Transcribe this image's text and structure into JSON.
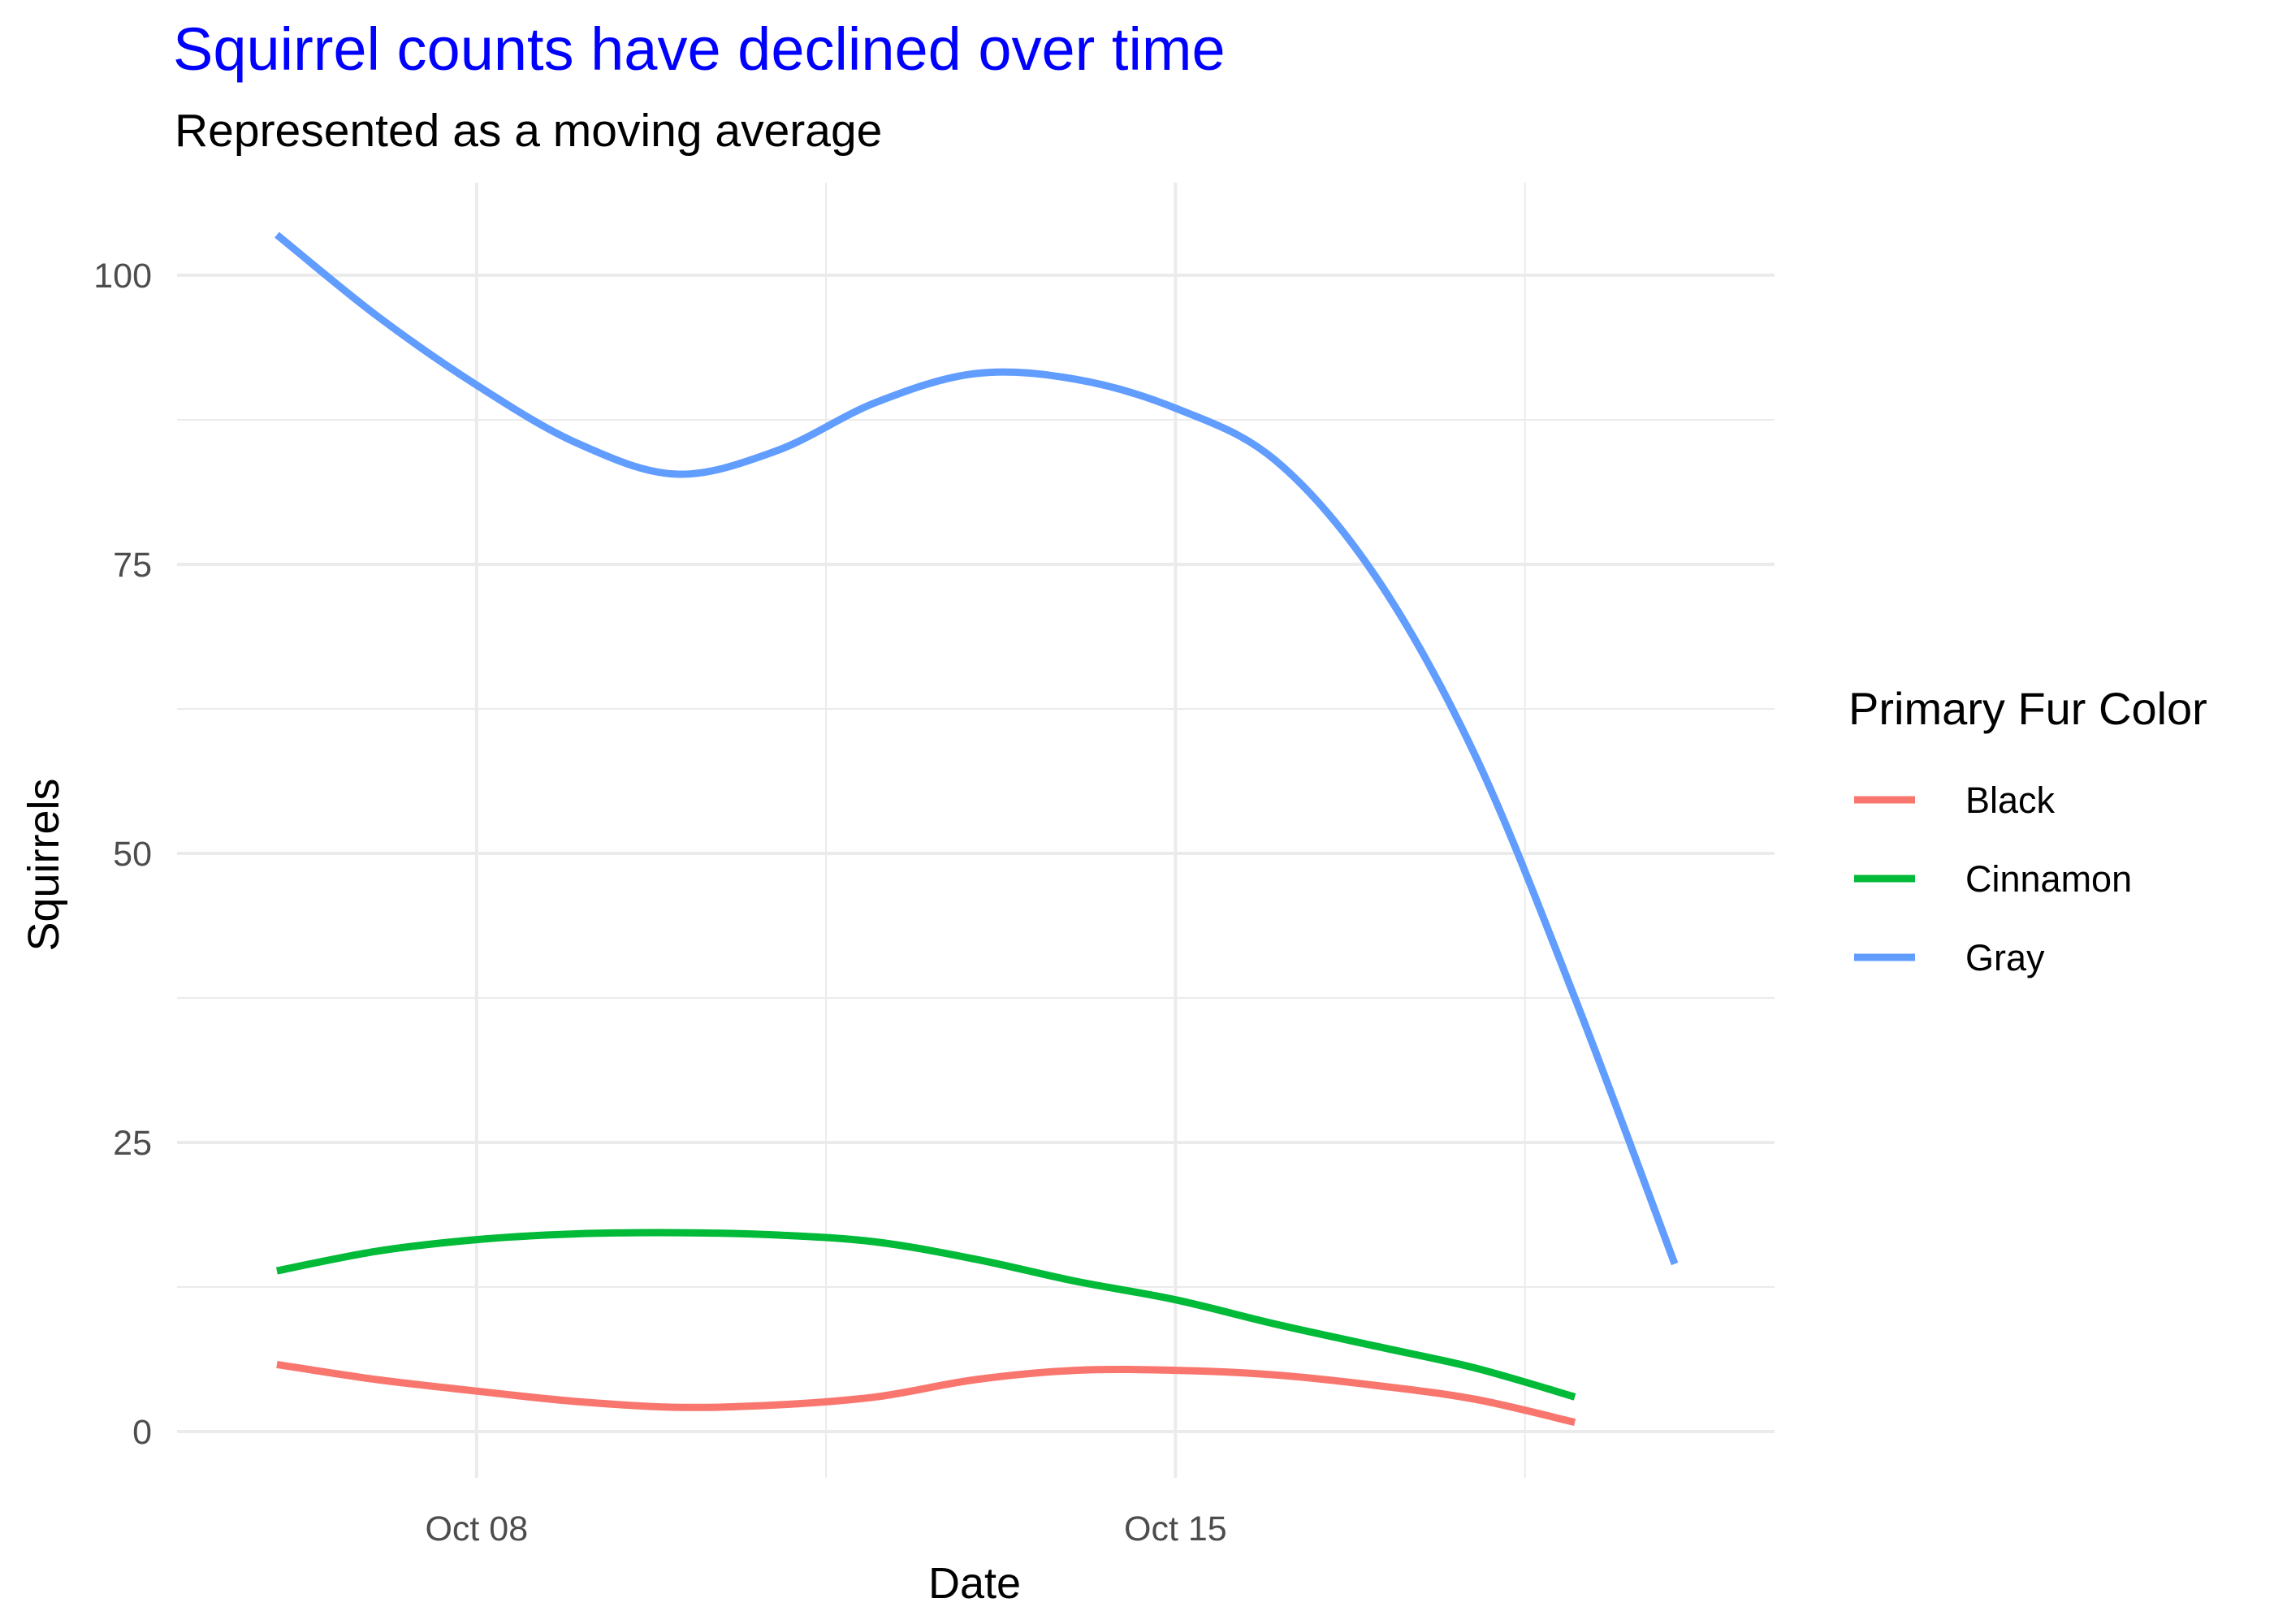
{
  "chart_data": {
    "type": "line",
    "title": "Squirrel counts have declined over time",
    "subtitle": "Represented as a moving average",
    "xlabel": "Date",
    "ylabel": "Squirrels",
    "x_ticks": [
      {
        "label": "Oct 08",
        "date": "2018-10-08"
      },
      {
        "label": "Oct 15",
        "date": "2018-10-15"
      }
    ],
    "y_ticks": [
      0,
      25,
      50,
      75,
      100
    ],
    "xlim": [
      "2018-10-05",
      "2018-10-21"
    ],
    "ylim": [
      -4,
      108
    ],
    "grid": true,
    "legend": {
      "title": "Primary Fur Color",
      "position": "right"
    },
    "series": [
      {
        "name": "Black",
        "color": "#F8766D",
        "points": [
          {
            "date": "2018-10-06",
            "y": 5.8
          },
          {
            "date": "2018-10-07",
            "y": 4.5
          },
          {
            "date": "2018-10-08",
            "y": 3.5
          },
          {
            "date": "2018-10-09",
            "y": 2.6
          },
          {
            "date": "2018-10-10",
            "y": 2.1
          },
          {
            "date": "2018-10-11",
            "y": 2.3
          },
          {
            "date": "2018-10-12",
            "y": 3.0
          },
          {
            "date": "2018-10-13",
            "y": 4.5
          },
          {
            "date": "2018-10-14",
            "y": 5.3
          },
          {
            "date": "2018-10-15",
            "y": 5.3
          },
          {
            "date": "2018-10-16",
            "y": 4.9
          },
          {
            "date": "2018-10-17",
            "y": 4.0
          },
          {
            "date": "2018-10-18",
            "y": 2.8
          },
          {
            "date": "2018-10-19",
            "y": 0.8
          }
        ]
      },
      {
        "name": "Cinnamon",
        "color": "#00BA38",
        "points": [
          {
            "date": "2018-10-06",
            "y": 13.9
          },
          {
            "date": "2018-10-07",
            "y": 15.6
          },
          {
            "date": "2018-10-08",
            "y": 16.6
          },
          {
            "date": "2018-10-09",
            "y": 17.1
          },
          {
            "date": "2018-10-10",
            "y": 17.2
          },
          {
            "date": "2018-10-11",
            "y": 17.0
          },
          {
            "date": "2018-10-12",
            "y": 16.4
          },
          {
            "date": "2018-10-13",
            "y": 14.9
          },
          {
            "date": "2018-10-14",
            "y": 13.0
          },
          {
            "date": "2018-10-15",
            "y": 11.4
          },
          {
            "date": "2018-10-16",
            "y": 9.3
          },
          {
            "date": "2018-10-17",
            "y": 7.4
          },
          {
            "date": "2018-10-18",
            "y": 5.5
          },
          {
            "date": "2018-10-19",
            "y": 3.0
          }
        ]
      },
      {
        "name": "Gray",
        "color": "#619CFF",
        "points": [
          {
            "date": "2018-10-06",
            "y": 103.5
          },
          {
            "date": "2018-10-07",
            "y": 96.5
          },
          {
            "date": "2018-10-08",
            "y": 90.5
          },
          {
            "date": "2018-10-09",
            "y": 85.5
          },
          {
            "date": "2018-10-10",
            "y": 82.8
          },
          {
            "date": "2018-10-11",
            "y": 84.8
          },
          {
            "date": "2018-10-12",
            "y": 89.0
          },
          {
            "date": "2018-10-13",
            "y": 91.5
          },
          {
            "date": "2018-10-14",
            "y": 91.0
          },
          {
            "date": "2018-10-15",
            "y": 88.5
          },
          {
            "date": "2018-10-16",
            "y": 84.0
          },
          {
            "date": "2018-10-17",
            "y": 74.0
          },
          {
            "date": "2018-10-18",
            "y": 58.5
          },
          {
            "date": "2018-10-19",
            "y": 37.5
          },
          {
            "date": "2018-10-20",
            "y": 14.5
          }
        ]
      }
    ]
  }
}
